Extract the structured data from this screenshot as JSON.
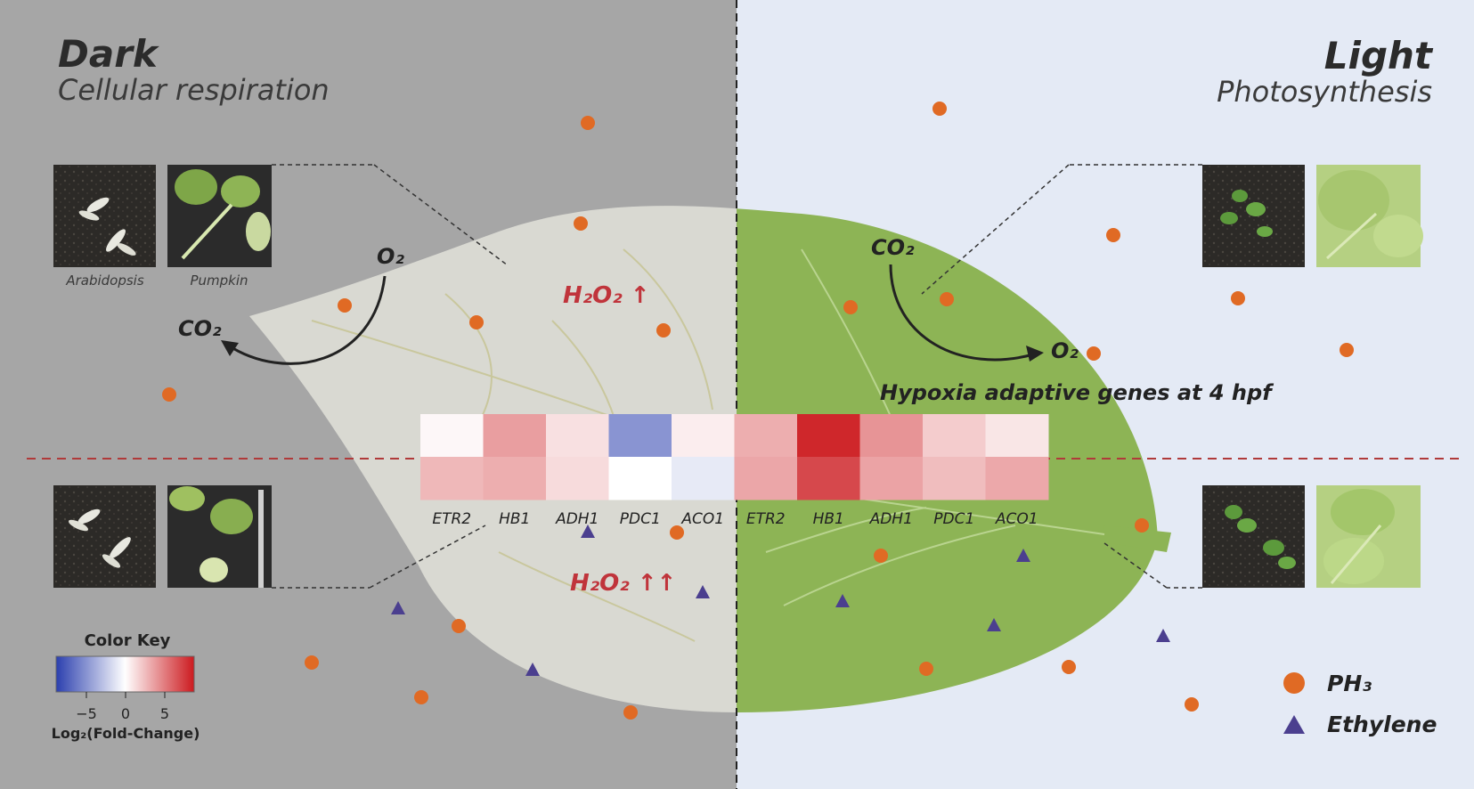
{
  "dark": {
    "title": "Dark",
    "subtitle": "Cellular respiration"
  },
  "light": {
    "title": "Light",
    "subtitle": "Photosynthesis"
  },
  "photo_captions": {
    "arabidopsis": "Arabidopsis",
    "pumpkin": "Pumpkin"
  },
  "gases": {
    "dark_in": "O₂",
    "dark_out": "CO₂",
    "light_in": "CO₂",
    "light_out": "O₂"
  },
  "h2o2": {
    "upper": "H₂O₂ ↑",
    "lower": "H₂O₂ ↑↑"
  },
  "hypoxia_label": "Hypoxia adaptive genes at 4 hpf",
  "genes": [
    "ETR2",
    "HB1",
    "ADH1",
    "PDC1",
    "ACO1",
    "ETR2",
    "HB1",
    "ADH1",
    "PDC1",
    "ACO1"
  ],
  "heatmap": {
    "rows": [
      [
        0.3,
        3.8,
        1.2,
        -5.0,
        0.7,
        3.2,
        8.5,
        4.2,
        2.0,
        1.0
      ],
      [
        2.8,
        3.2,
        1.4,
        0.0,
        -1.0,
        3.5,
        7.2,
        3.6,
        2.6,
        3.4
      ]
    ]
  },
  "color_key": {
    "title": "Color Key",
    "ticks": [
      "−5",
      "0",
      "5"
    ],
    "label": "Log₂(Fold-Change)",
    "low_color": "#2b3fae",
    "mid_color": "#ffffff",
    "high_color": "#cc1a1f"
  },
  "legend": [
    {
      "symbol": "circle",
      "label": "PH₃",
      "color": "#e06a24"
    },
    {
      "symbol": "triangle",
      "label": "Ethylene",
      "color": "#4b3f8f"
    }
  ],
  "colors": {
    "dark_bg": "#a6a6a6",
    "light_bg": "#e4eaf5",
    "leaf_pale": "#d9d9d2",
    "leaf_green": "#8db455",
    "ph3": "#e06a24",
    "ethylene": "#4b3f8f",
    "threshold_line": "#b03a3a"
  }
}
